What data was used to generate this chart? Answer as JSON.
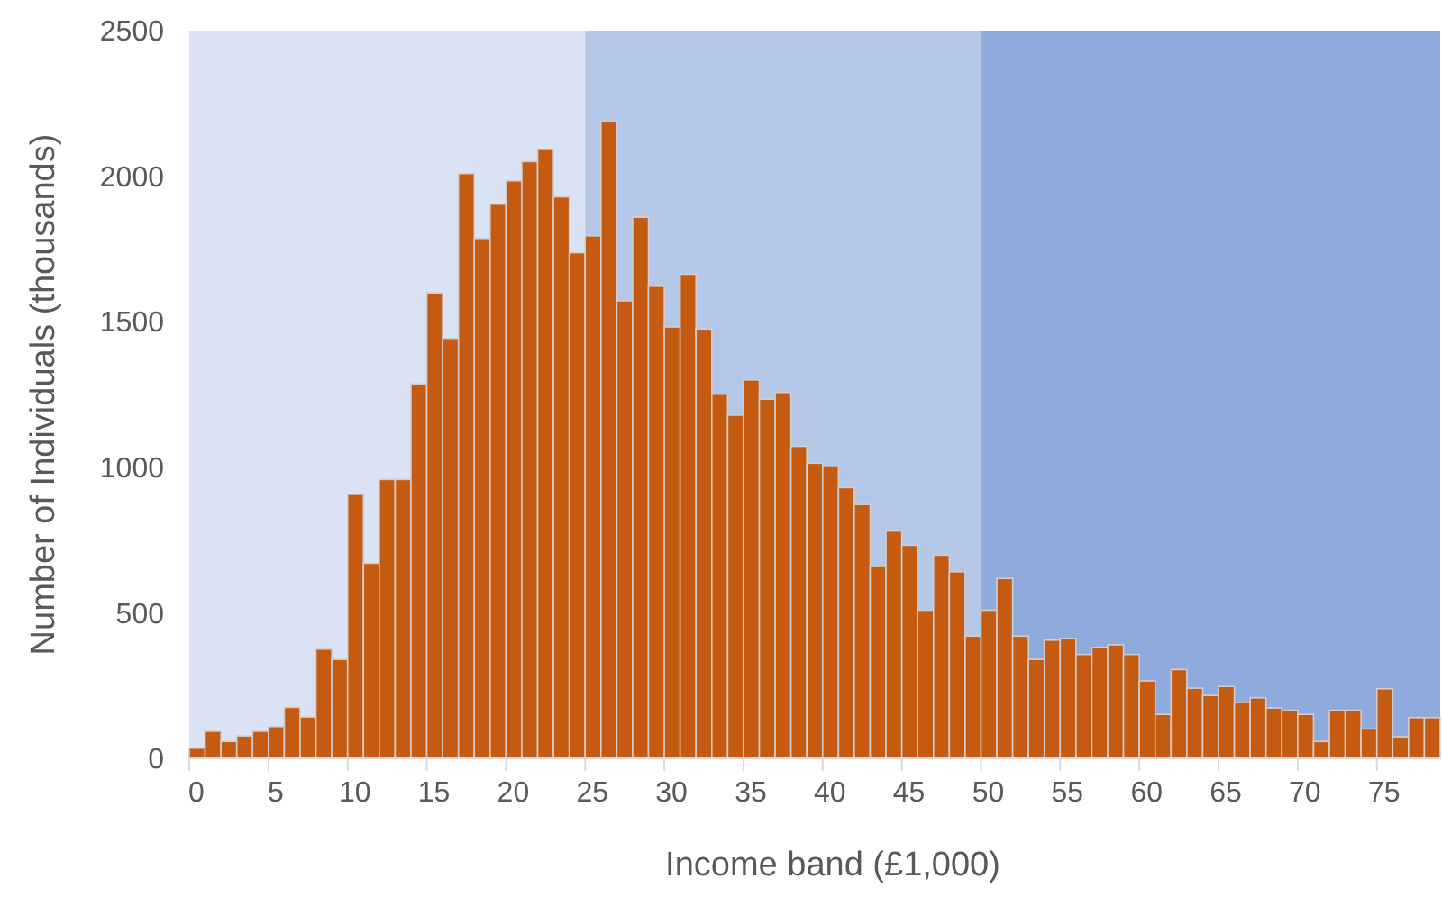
{
  "chart_data": {
    "type": "histogram",
    "xlabel": "Income band (£1,000)",
    "ylabel": "Number of Individuals (thousands)",
    "bins": [
      0,
      1,
      2,
      3,
      4,
      5,
      6,
      7,
      8,
      9,
      10,
      11,
      12,
      13,
      14,
      15,
      16,
      17,
      18,
      19,
      20,
      21,
      22,
      23,
      24,
      25,
      26,
      27,
      28,
      29,
      30,
      31,
      32,
      33,
      34,
      35,
      36,
      37,
      38,
      39,
      40,
      41,
      42,
      43,
      44,
      45,
      46,
      47,
      48,
      49,
      50,
      51,
      52,
      53,
      54,
      55,
      56,
      57,
      58,
      59,
      60,
      61,
      62,
      63,
      64,
      65,
      66,
      67,
      68,
      69,
      70,
      71,
      72,
      73,
      74,
      75,
      76,
      77,
      78,
      79
    ],
    "values": [
      35,
      93,
      58,
      77,
      93,
      109,
      175,
      142,
      375,
      340,
      907,
      670,
      958,
      958,
      1286,
      1599,
      1443,
      2009,
      1786,
      1904,
      1984,
      2050,
      2092,
      1929,
      1737,
      1795,
      2188,
      1572,
      1859,
      1622,
      1482,
      1663,
      1475,
      1251,
      1179,
      1300,
      1234,
      1257,
      1072,
      1014,
      1006,
      930,
      872,
      659,
      781,
      732,
      509,
      698,
      641,
      420,
      509,
      618,
      420,
      340,
      406,
      412,
      357,
      381,
      390,
      357,
      266,
      151,
      305,
      241,
      216,
      247,
      192,
      208,
      173,
      165,
      151,
      58,
      165,
      165,
      101,
      239,
      74,
      140,
      140
    ],
    "color": "#c55a11",
    "xlim": [
      0,
      79
    ],
    "xticks": [
      0,
      5,
      10,
      15,
      20,
      25,
      30,
      35,
      40,
      45,
      50,
      55,
      60,
      65,
      70,
      75
    ],
    "ylim": [
      0,
      2500
    ],
    "yticks": [
      0,
      500,
      1000,
      1500,
      2000,
      2500
    ],
    "bands": [
      {
        "axis": "x",
        "from": 0,
        "to": 25,
        "color": "#dae3f3"
      },
      {
        "axis": "x",
        "from": 25,
        "to": 50,
        "color": "#b4c7e7"
      },
      {
        "axis": "x",
        "from": 50,
        "to": 79,
        "color": "#8faadc"
      }
    ]
  }
}
